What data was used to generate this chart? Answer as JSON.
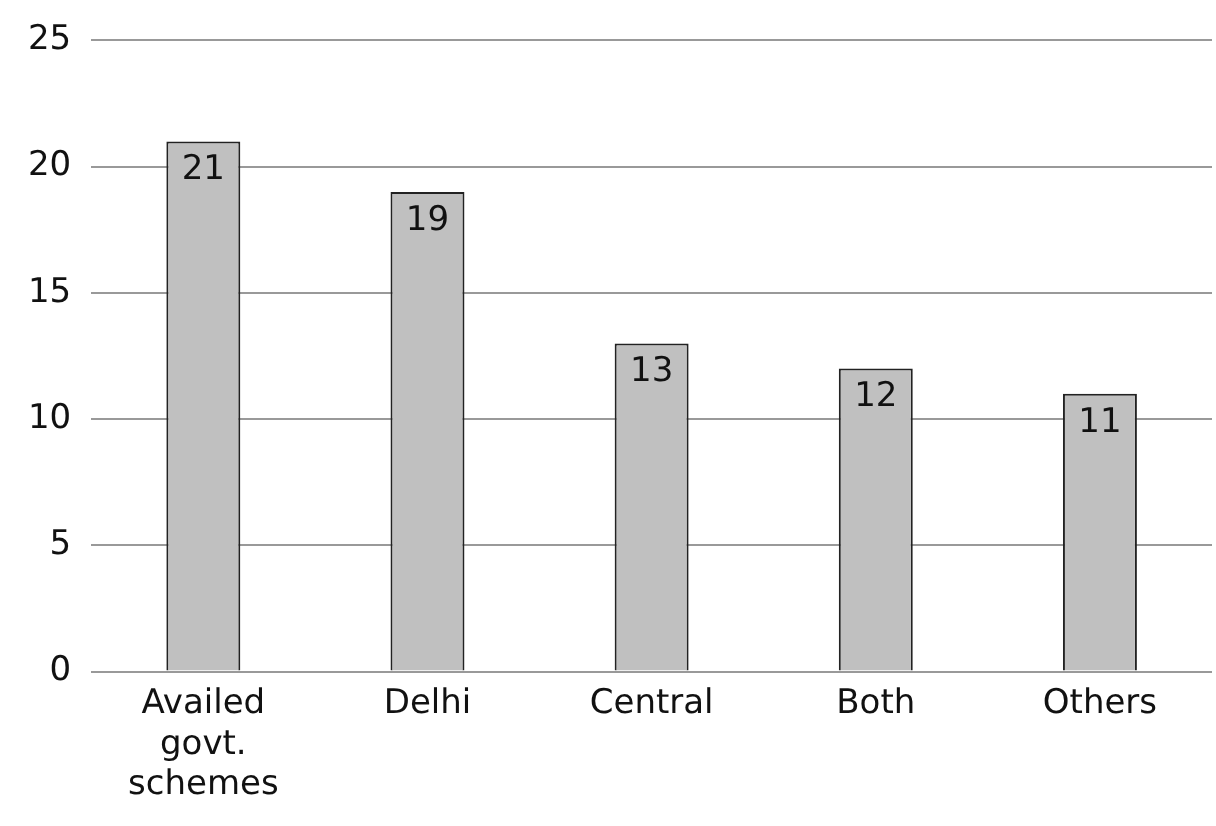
{
  "chart_data": {
    "type": "bar",
    "categories": [
      "Availed govt. schemes",
      "Delhi",
      "Central",
      "Both",
      "Others"
    ],
    "values": [
      21,
      19,
      13,
      12,
      11
    ],
    "color": "#c0c0c0",
    "ylim": [
      0,
      25
    ],
    "yticks": [
      0,
      5,
      10,
      15,
      20,
      25
    ],
    "grid": "y",
    "data_labels": true
  }
}
